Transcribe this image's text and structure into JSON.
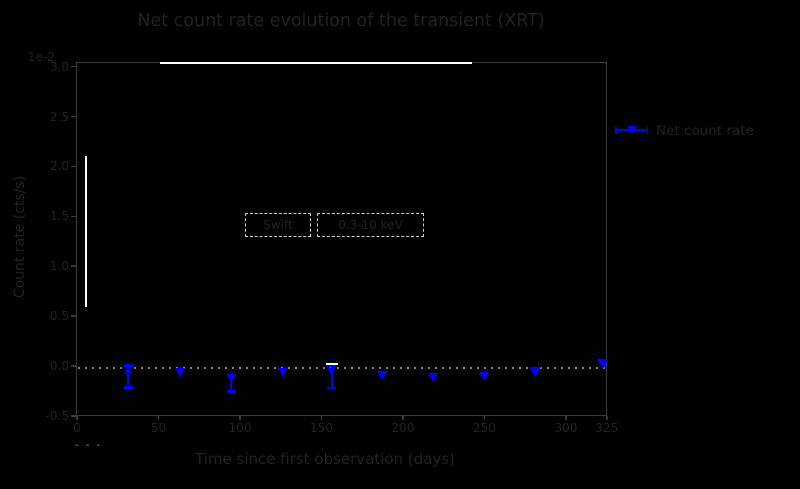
{
  "figure": {
    "title": "Net count rate evolution of the transient (XRT)",
    "background_color": "#000000",
    "accent_blue": "#0000ff",
    "white_line_color": "#ffffff",
    "text_color": "#222222",
    "spine_color": "#3b3b3b",
    "dotted_line_color": "#828282",
    "dashed_box_border_color": "#cfcfcf"
  },
  "axes": {
    "xlabel": "Time since first observation (days)",
    "ylabel": "Count rate (cts/s)",
    "y_offset_label": "1e-2",
    "corner_marks": "- - -",
    "x_ticks": [
      {
        "value": 0,
        "label": "0"
      },
      {
        "value": 50,
        "label": "50"
      },
      {
        "value": 100,
        "label": "100"
      },
      {
        "value": 150,
        "label": "150"
      },
      {
        "value": 200,
        "label": "200"
      },
      {
        "value": 250,
        "label": "250"
      },
      {
        "value": 300,
        "label": "300"
      },
      {
        "value": 325,
        "label": "325"
      }
    ],
    "y_ticks": [
      {
        "value": 3.0,
        "label": "3.0"
      },
      {
        "value": 2.5,
        "label": "2.5"
      },
      {
        "value": 2.0,
        "label": "2.0"
      },
      {
        "value": 1.5,
        "label": "1.5"
      },
      {
        "value": 1.0,
        "label": "1.0"
      },
      {
        "value": 0.5,
        "label": "0.5"
      },
      {
        "value": 0.0,
        "label": "0.0"
      },
      {
        "value": -0.5,
        "label": "-0.5"
      }
    ]
  },
  "legend": {
    "label": "Net count rate",
    "marker": "triangle-down-errorbar",
    "marker_color": "#0000ff",
    "position": "outside-right"
  },
  "annotations": [
    {
      "text": "Swift"
    },
    {
      "text": "0.3-10 keV"
    }
  ],
  "chart_data": {
    "type": "scatter",
    "title": "Net count rate evolution of the transient (XRT)",
    "xlabel": "Time since first observation (days)",
    "ylabel": "Count rate (cts/s)",
    "y_scale_note": "1e-2",
    "xlim": [
      -1,
      325
    ],
    "ylim": [
      -0.5,
      3.05
    ],
    "grid": false,
    "legend_position": "outside-right",
    "zero_line": {
      "y": 0.0,
      "style": "dotted",
      "color": "#828282"
    },
    "series": [
      {
        "name": "measurements-with-errorbars",
        "color": "#0000ff",
        "marker": "triangle-down",
        "points": [
          {
            "x": 31.3,
            "y": -0.08,
            "err_lo": 0.135,
            "err_hi": 0.085
          },
          {
            "x": 94.5,
            "y": -0.13,
            "err_lo": 0.125,
            "err_hi": 0.035
          },
          {
            "x": 156.4,
            "y": -0.06,
            "err_lo": 0.16,
            "err_hi": 0.065
          }
        ]
      },
      {
        "name": "upper-limits",
        "color": "#0000ff",
        "marker": "triangle-down",
        "points": [
          {
            "x": 63.2,
            "y": -0.07,
            "size": 11
          },
          {
            "x": 126.4,
            "y": -0.07,
            "size": 11
          },
          {
            "x": 187.7,
            "y": -0.1,
            "size": 11
          },
          {
            "x": 219.0,
            "y": -0.12,
            "size": 11
          },
          {
            "x": 249.7,
            "y": -0.105,
            "size": 11
          },
          {
            "x": 281.0,
            "y": -0.06,
            "size": 13
          },
          {
            "x": 322.7,
            "y": 0.02,
            "size": 13
          }
        ]
      },
      {
        "name": "clipped-white-line",
        "color": "#ffffff",
        "marker": "none",
        "segments": [
          {
            "x1": 2.8,
            "y1": 0.59,
            "x2": 2.8,
            "y2": 2.1
          },
          {
            "x1": 51.0,
            "y1": 3.04,
            "x2": 242.5,
            "y2": 3.04
          },
          {
            "x1": 152.8,
            "y1": 0.025,
            "x2": 160.1,
            "y2": 0.025
          }
        ]
      }
    ]
  }
}
